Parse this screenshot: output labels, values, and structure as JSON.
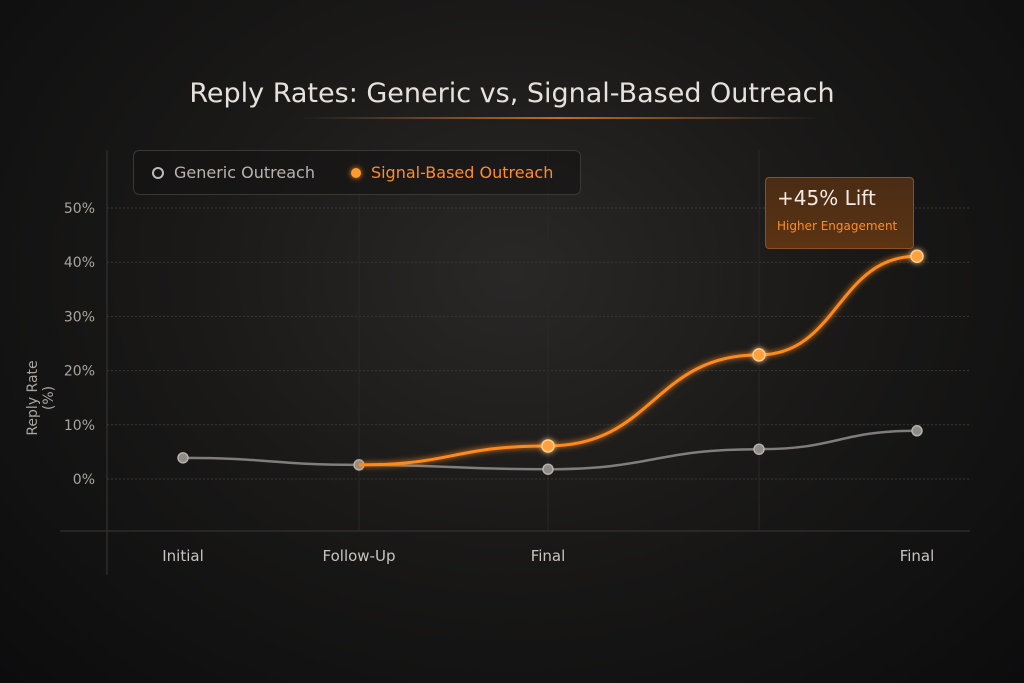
{
  "chart_data": {
    "type": "line",
    "title": "Reply Rates: Generic vs, Signal-Based Outreach",
    "ylabel": "Reply Rate (%)",
    "xlabel": "",
    "categories": [
      "Initial",
      "Follow-Up",
      "Final",
      "",
      "Final"
    ],
    "y_ticks": [
      "0%",
      "10%",
      "20%",
      "30%",
      "40%",
      "50%"
    ],
    "ylim": [
      -10,
      55
    ],
    "grid": true,
    "legend_position": "top-left",
    "series": [
      {
        "name": "Generic Outreach",
        "color": "#9a9693",
        "values": [
          3.9,
          2.6,
          1.8,
          5.5,
          8.9
        ]
      },
      {
        "name": "Signal-Based Outreach",
        "color": "#ff8a1f",
        "values": [
          null,
          2.6,
          6.1,
          22.9,
          41.1
        ]
      }
    ],
    "annotation": {
      "headline": "+45% Lift",
      "subtext": "Higher Engagement"
    }
  }
}
